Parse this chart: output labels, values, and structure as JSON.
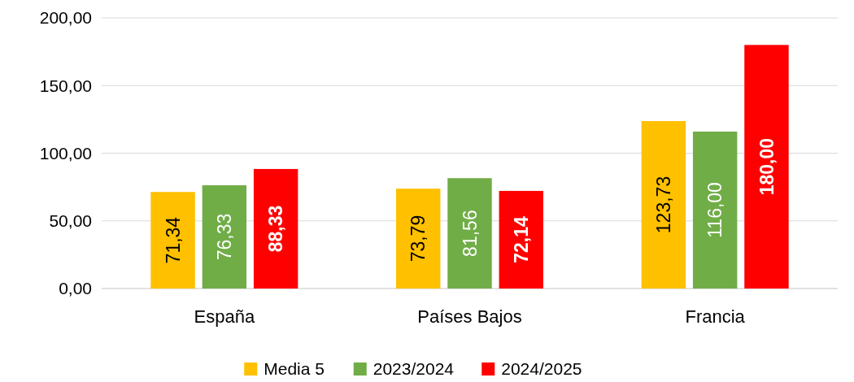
{
  "chart_data": {
    "type": "bar",
    "categories": [
      "España",
      "Países Bajos",
      "Francia"
    ],
    "series": [
      {
        "name": "Media 5",
        "color": "#ffc000",
        "values": [
          71.34,
          73.79,
          123.73
        ],
        "value_labels": [
          "71,34",
          "73,79",
          "123,73"
        ]
      },
      {
        "name": "2023/2024",
        "color": "#70ad47",
        "values": [
          76.33,
          81.56,
          116.0
        ],
        "value_labels": [
          "76,33",
          "81,56",
          "116,00"
        ]
      },
      {
        "name": "2024/2025",
        "color": "#ff0000",
        "values": [
          88.33,
          72.14,
          180.0
        ],
        "value_labels": [
          "88,33",
          "72,14",
          "180,00"
        ]
      }
    ],
    "ylim": [
      0,
      200
    ],
    "yticks": [
      {
        "value": 0,
        "label": "0,00"
      },
      {
        "value": 50,
        "label": "50,00"
      },
      {
        "value": 100,
        "label": "100,00"
      },
      {
        "value": 150,
        "label": "150,00"
      },
      {
        "value": 200,
        "label": "200,00"
      }
    ],
    "grid": "y",
    "legend": "bottom"
  }
}
